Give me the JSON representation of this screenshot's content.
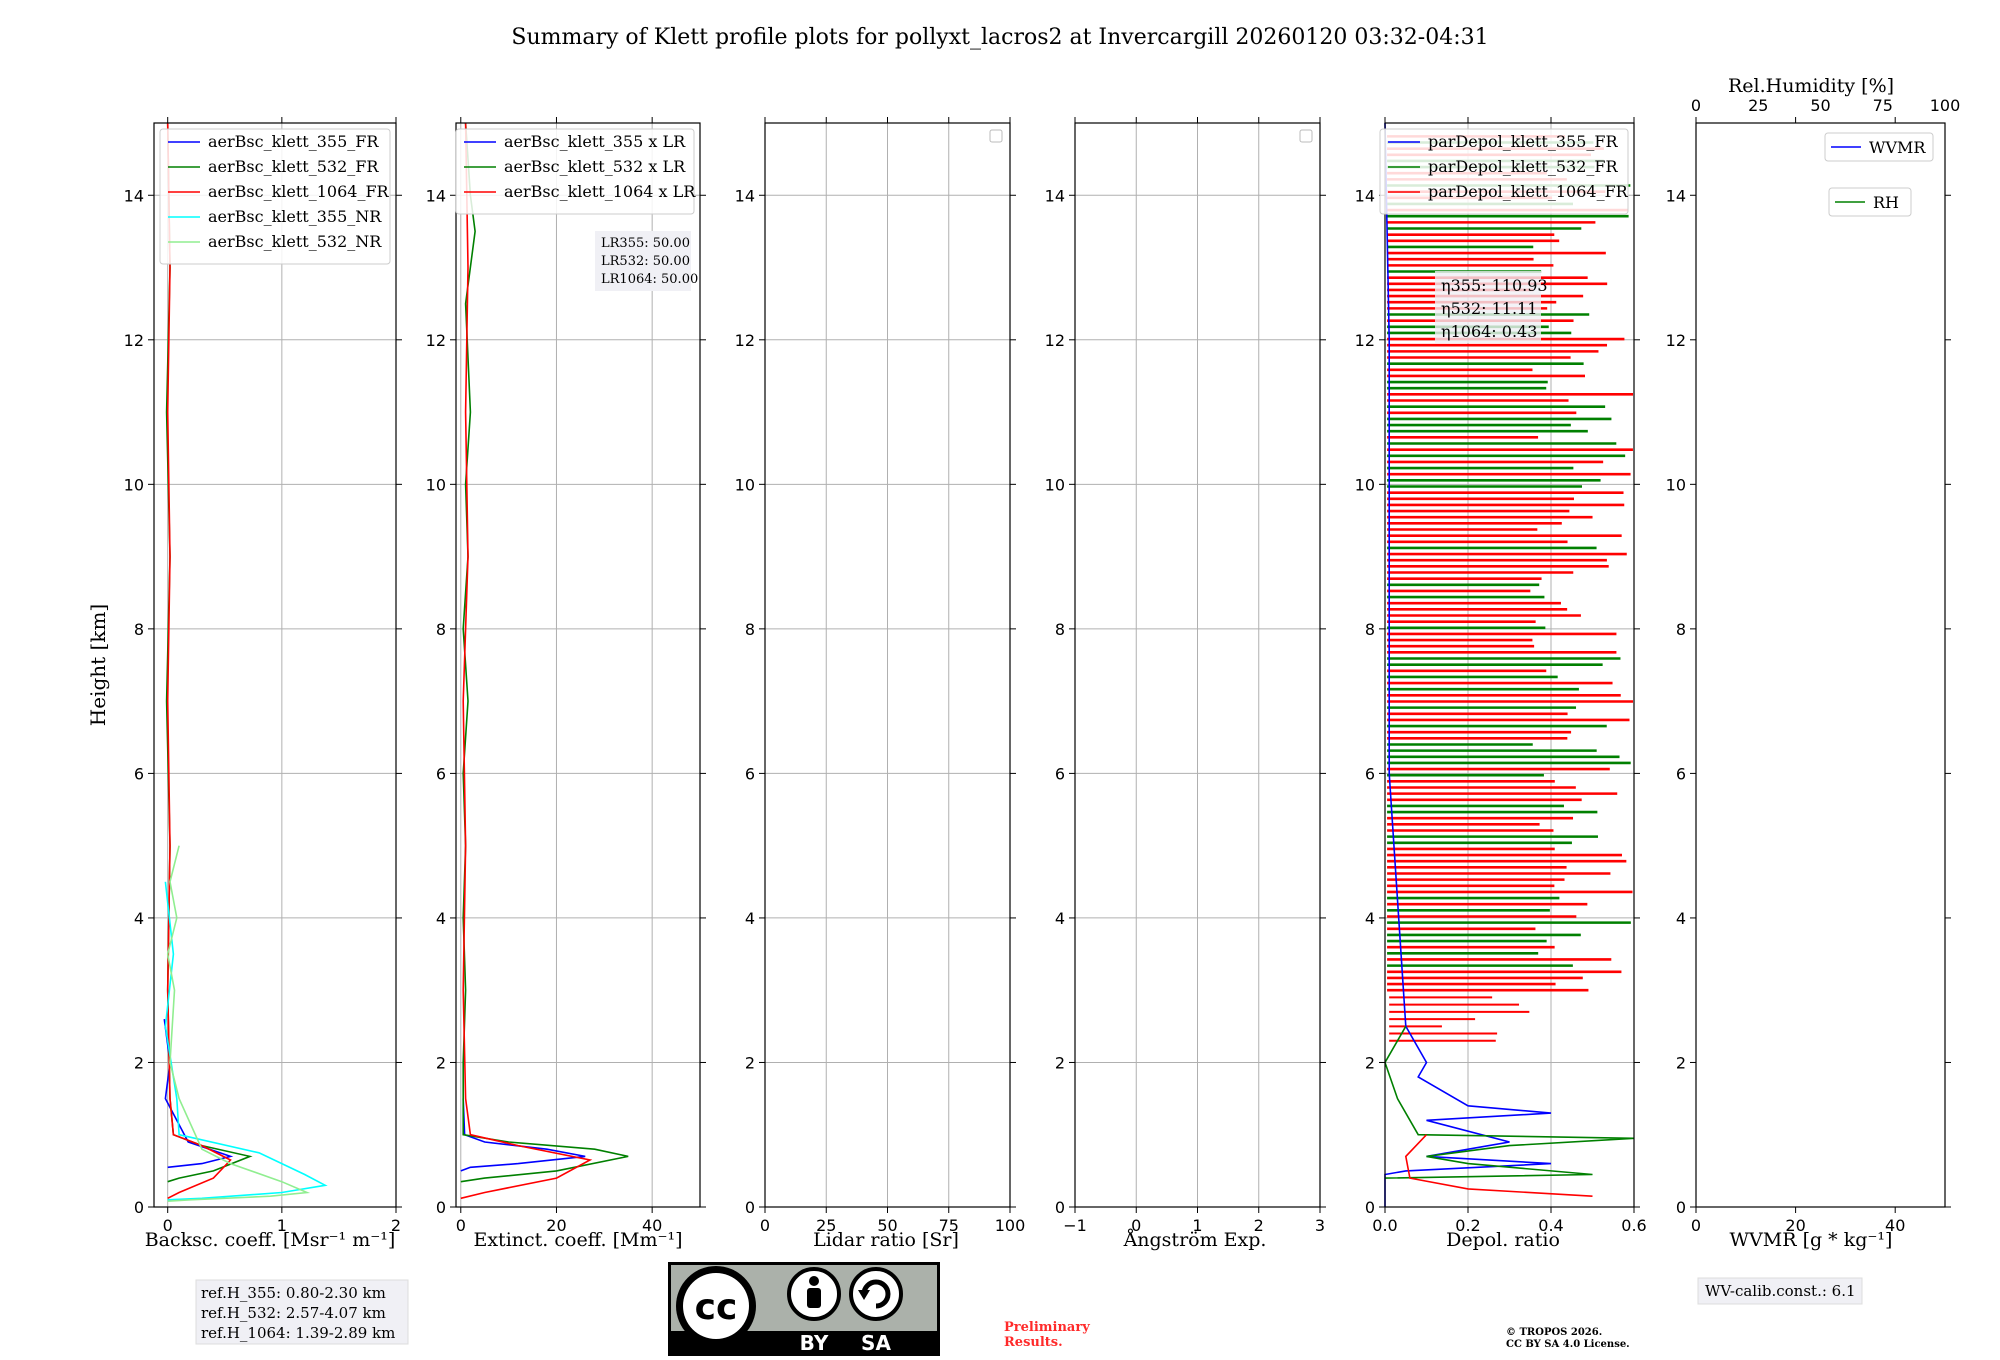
{
  "figure": {
    "title": "Summary of Klett profile plots for pollyxt_lacros2 at Invercargill 20260120 03:32-04:31",
    "ylabel": "Height [km]"
  },
  "chart_data": [
    {
      "type": "line",
      "id": "backscatter",
      "xlabel": "Backsc. coeff. [Msr⁻¹ m⁻¹]",
      "xlim": [
        -0.12,
        2
      ],
      "xticks": [
        0,
        1,
        2
      ],
      "ylim": [
        0,
        15
      ],
      "yticks": [
        0,
        2,
        4,
        6,
        8,
        10,
        12,
        14
      ],
      "grid": true,
      "legend_position": "top-right",
      "series": [
        {
          "name": "aerBsc_klett_355_FR",
          "color": "#0000ff",
          "points": [
            [
              -0.02,
              1.5
            ],
            [
              0.02,
              2.0
            ],
            [
              -0.03,
              2.6
            ],
            [
              0.18,
              0.9
            ],
            [
              0.55,
              0.7
            ],
            [
              0.3,
              0.6
            ],
            [
              0.0,
              0.55
            ]
          ]
        },
        {
          "name": "aerBsc_klett_532_FR",
          "color": "#008000",
          "points": [
            [
              0.0,
              15
            ],
            [
              0.02,
              13
            ],
            [
              -0.01,
              11
            ],
            [
              0.02,
              9
            ],
            [
              -0.01,
              7
            ],
            [
              0.02,
              5
            ],
            [
              0.0,
              3
            ],
            [
              0.02,
              1.5
            ],
            [
              0.05,
              1.0
            ],
            [
              0.3,
              0.85
            ],
            [
              0.72,
              0.7
            ],
            [
              0.4,
              0.5
            ],
            [
              0.1,
              0.4
            ],
            [
              0.0,
              0.35
            ]
          ]
        },
        {
          "name": "aerBsc_klett_1064_FR",
          "color": "#ff0000",
          "points": [
            [
              0.0,
              15
            ],
            [
              0.02,
              13
            ],
            [
              0.0,
              11
            ],
            [
              0.02,
              9
            ],
            [
              0.0,
              7
            ],
            [
              0.02,
              5
            ],
            [
              0.0,
              3
            ],
            [
              0.02,
              1.5
            ],
            [
              0.05,
              1.0
            ],
            [
              0.3,
              0.85
            ],
            [
              0.55,
              0.65
            ],
            [
              0.4,
              0.4
            ],
            [
              0.1,
              0.2
            ],
            [
              0.0,
              0.12
            ]
          ]
        },
        {
          "name": "aerBsc_klett_355_NR",
          "color": "#00ffff",
          "points": [
            [
              -0.02,
              4.5
            ],
            [
              0.05,
              3.5
            ],
            [
              -0.02,
              2.5
            ],
            [
              0.08,
              1.5
            ],
            [
              0.1,
              1.0
            ],
            [
              0.8,
              0.75
            ],
            [
              1.2,
              0.45
            ],
            [
              1.38,
              0.3
            ],
            [
              1.0,
              0.2
            ],
            [
              0.3,
              0.12
            ],
            [
              0.0,
              0.1
            ]
          ]
        },
        {
          "name": "aerBsc_klett_532_NR",
          "color": "#90ee90",
          "points": [
            [
              0.1,
              5.0
            ],
            [
              0.02,
              4.5
            ],
            [
              0.08,
              4.0
            ],
            [
              0.0,
              3.5
            ],
            [
              0.06,
              3.0
            ],
            [
              0.02,
              2.0
            ],
            [
              0.1,
              1.5
            ],
            [
              0.3,
              0.8
            ],
            [
              0.55,
              0.6
            ],
            [
              1.0,
              0.35
            ],
            [
              1.22,
              0.2
            ],
            [
              0.9,
              0.15
            ],
            [
              0.2,
              0.1
            ],
            [
              0.0,
              0.08
            ]
          ]
        }
      ],
      "annotations": [
        "ref.H_355: 0.80-2.30 km",
        "ref.H_532: 2.57-4.07 km",
        "ref.H_1064: 1.39-2.89 km"
      ]
    },
    {
      "type": "line",
      "id": "extinction",
      "xlabel": "Extinct. coeff. [Mm⁻¹]",
      "xlim": [
        -1,
        50
      ],
      "xticks": [
        0,
        20,
        40
      ],
      "ylim": [
        0,
        15
      ],
      "yticks": [
        0,
        2,
        4,
        6,
        8,
        10,
        12,
        14
      ],
      "grid": true,
      "legend_position": "top-right",
      "series": [
        {
          "name": "aerBsc_klett_355 x LR",
          "color": "#0000ff",
          "points": [
            [
              0.5,
              1.5
            ],
            [
              0.8,
              1.0
            ],
            [
              5,
              0.9
            ],
            [
              18,
              0.8
            ],
            [
              26,
              0.7
            ],
            [
              12,
              0.6
            ],
            [
              2,
              0.55
            ],
            [
              0,
              0.5
            ]
          ]
        },
        {
          "name": "aerBsc_klett_532 x LR",
          "color": "#008000",
          "points": [
            [
              1,
              15
            ],
            [
              2,
              14
            ],
            [
              3,
              13.5
            ],
            [
              1,
              12.5
            ],
            [
              2,
              11
            ],
            [
              1,
              10
            ],
            [
              1.5,
              9
            ],
            [
              0.5,
              8
            ],
            [
              1.5,
              7
            ],
            [
              0.5,
              6
            ],
            [
              1,
              5
            ],
            [
              0.5,
              4
            ],
            [
              1,
              3
            ],
            [
              0.5,
              2
            ],
            [
              0.5,
              1.0
            ],
            [
              10,
              0.9
            ],
            [
              28,
              0.8
            ],
            [
              35,
              0.7
            ],
            [
              20,
              0.5
            ],
            [
              5,
              0.4
            ],
            [
              0,
              0.35
            ]
          ]
        },
        {
          "name": "aerBsc_klett_1064 x LR",
          "color": "#ff0000",
          "points": [
            [
              1,
              15
            ],
            [
              1.5,
              13
            ],
            [
              1,
              11
            ],
            [
              1.5,
              9
            ],
            [
              0.5,
              7
            ],
            [
              1,
              5
            ],
            [
              0.5,
              3
            ],
            [
              1,
              1.5
            ],
            [
              2,
              1.0
            ],
            [
              12,
              0.85
            ],
            [
              27,
              0.65
            ],
            [
              20,
              0.4
            ],
            [
              5,
              0.2
            ],
            [
              0,
              0.12
            ]
          ]
        }
      ],
      "annotations": [
        "LR355: 50.00",
        "LR532: 50.00",
        "LR1064: 50.00"
      ]
    },
    {
      "type": "line",
      "id": "lidar_ratio",
      "xlabel": "Lidar ratio [Sr]",
      "xlim": [
        0,
        100
      ],
      "xticks": [
        0,
        25,
        50,
        75,
        100
      ],
      "ylim": [
        0,
        15
      ],
      "yticks": [
        0,
        2,
        4,
        6,
        8,
        10,
        12,
        14
      ],
      "grid": true,
      "series": []
    },
    {
      "type": "line",
      "id": "angstrom",
      "xlabel": "Ångström Exp.",
      "xlim": [
        -1,
        3
      ],
      "xticks": [
        -1,
        0,
        1,
        2,
        3
      ],
      "ylim": [
        0,
        15
      ],
      "yticks": [
        0,
        2,
        4,
        6,
        8,
        10,
        12,
        14
      ],
      "grid": true,
      "series": []
    },
    {
      "type": "line",
      "id": "depol",
      "xlabel": "Depol. ratio",
      "xlim": [
        0,
        0.6
      ],
      "xticks": [
        0.0,
        0.2,
        0.4,
        0.6
      ],
      "xtick_labels": [
        "0.0",
        "0.2",
        "0.4",
        "0.6"
      ],
      "ylim": [
        0,
        15
      ],
      "yticks": [
        0,
        2,
        4,
        6,
        8,
        10,
        12,
        14
      ],
      "grid": true,
      "legend_position": "top-right",
      "series": [
        {
          "name": "parDepol_klett_355_FR",
          "color": "#0000ff",
          "points": [
            [
              0.0,
              0.0
            ],
            [
              0.01,
              6
            ],
            [
              0.01,
              8
            ],
            [
              0.01,
              12
            ],
            [
              0.0,
              15
            ],
            [
              0.05,
              2.5
            ],
            [
              0.1,
              2.0
            ],
            [
              0.08,
              1.8
            ],
            [
              0.2,
              1.4
            ],
            [
              0.4,
              1.3
            ],
            [
              0.1,
              1.2
            ],
            [
              0.3,
              0.9
            ],
            [
              0.1,
              0.7
            ],
            [
              0.4,
              0.6
            ],
            [
              0.05,
              0.5
            ],
            [
              0.0,
              0.45
            ]
          ]
        },
        {
          "name": "parDepol_klett_532_FR",
          "color": "#008000",
          "points": [
            [
              0.05,
              2.5
            ],
            [
              0.0,
              2.0
            ],
            [
              0.03,
              1.5
            ],
            [
              0.08,
              1.0
            ],
            [
              0.6,
              0.95
            ],
            [
              0.3,
              0.85
            ],
            [
              0.1,
              0.7
            ],
            [
              0.2,
              0.6
            ],
            [
              0.5,
              0.45
            ],
            [
              0.0,
              0.4
            ]
          ]
        },
        {
          "name": "parDepol_klett_1064_FR",
          "color": "#ff0000",
          "points": [
            [
              0.1,
              1.0
            ],
            [
              0.05,
              0.7
            ],
            [
              0.06,
              0.4
            ],
            [
              0.2,
              0.25
            ],
            [
              0.5,
              0.15
            ]
          ]
        }
      ],
      "annotations": [
        "η355: 110.93",
        "η532: 11.11",
        "η1064: 0.43"
      ]
    },
    {
      "type": "line",
      "id": "wvmr",
      "xlabel": "WVMR [g * kg⁻¹]",
      "xlim": [
        0,
        50
      ],
      "xticks": [
        0,
        20,
        40
      ],
      "top_xlabel": "Rel.Humidity [%]",
      "top_xlim": [
        0,
        100
      ],
      "top_xticks": [
        0,
        25,
        50,
        75,
        100
      ],
      "ylim": [
        0,
        15
      ],
      "yticks": [
        0,
        2,
        4,
        6,
        8,
        10,
        12,
        14
      ],
      "grid": false,
      "legend_position": "top-right",
      "series": [
        {
          "name": "WVMR",
          "color": "#0000ff",
          "points": []
        },
        {
          "name": "RH",
          "color": "#008000",
          "points": []
        }
      ],
      "annotations": [
        "WV-calib.const.: 6.1"
      ]
    }
  ],
  "footer": {
    "license_badge_by": "BY",
    "license_badge_sa": "SA",
    "license_badge_cc": "cc",
    "preliminary_line1": "Preliminary",
    "preliminary_line2": "Results.",
    "copyright_line1": "© TROPOS 2026.",
    "copyright_line2": "CC BY SA 4.0 License."
  },
  "colors": {
    "blue": "#0000ff",
    "green": "#008000",
    "red": "#ff0000",
    "cyan": "#00ffff",
    "lightgreen": "#90ee90",
    "grid": "#b0b0b0",
    "legend_bg": "#f0f0f0",
    "preliminary": "#ff2a2a"
  }
}
